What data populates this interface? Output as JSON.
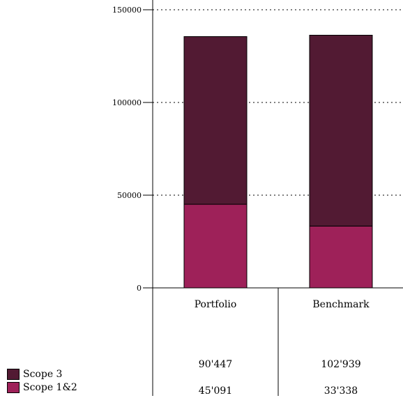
{
  "chart_data": {
    "type": "bar",
    "stacked": true,
    "categories": [
      "Portfolio",
      "Benchmark"
    ],
    "series": [
      {
        "name": "Scope 1&2",
        "values": [
          45091,
          33338
        ],
        "color": "#9e2159"
      },
      {
        "name": "Scope 3",
        "values": [
          90447,
          102939
        ],
        "color": "#521a33"
      }
    ],
    "ylim": [
      0,
      150000
    ],
    "yticks": [
      "0",
      "50000",
      "100000",
      "150000"
    ],
    "grid": "dotted horizontal",
    "legend_position": "bottom-left",
    "table": {
      "scope3_labels": [
        "90'447",
        "102'939"
      ],
      "scope12_labels": [
        "45'091",
        "33'338"
      ]
    }
  }
}
